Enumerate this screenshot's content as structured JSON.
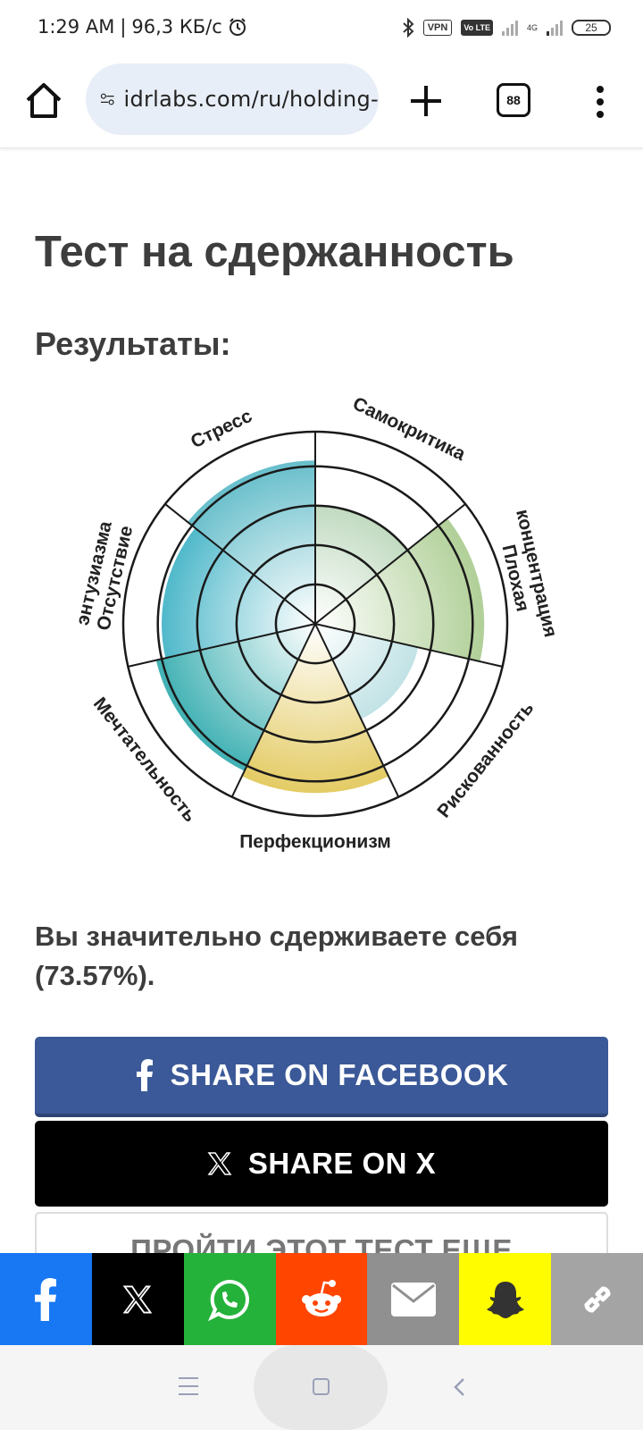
{
  "status_bar": {
    "time": "1:29 AM",
    "network_speed": "96,3 КБ/с",
    "vpn_label": "VPN",
    "volte_label": "Vo LTE",
    "network_type": "4G",
    "battery": "25"
  },
  "browser": {
    "url": "idrlabs.com/ru/holding-",
    "tab_count": "88"
  },
  "page": {
    "title": "Тест на сдержанность",
    "subtitle": "Результаты:",
    "result_text": "Вы значительно сдерживаете себя (73.57%).",
    "share_facebook": "SHARE ON FACEBOOK",
    "share_x": "SHARE ON X",
    "retake": "ПРОЙТИ ЭТОТ ТЕСТ ЕЩЕ"
  },
  "chart_data": {
    "type": "radial_bar",
    "categories": [
      "Самокритика",
      "Плохая концентрация",
      "Рискованность",
      "Перфекционизм",
      "Мечтательность",
      "Отсутствие энтузиазма",
      "Стресс"
    ],
    "values": [
      0.62,
      0.88,
      0.55,
      0.88,
      0.85,
      0.8,
      0.85
    ],
    "max": 1,
    "rings": 5,
    "colors": [
      "#9bc49a",
      "#a6c98a",
      "#8fcbd0",
      "#e0c44f",
      "#1fa3a6",
      "#24a7bd",
      "#4db3c2"
    ]
  },
  "share_bar": [
    "facebook-icon",
    "x-icon",
    "whatsapp-icon",
    "reddit-icon",
    "email-icon",
    "snapchat-icon",
    "link-icon"
  ]
}
